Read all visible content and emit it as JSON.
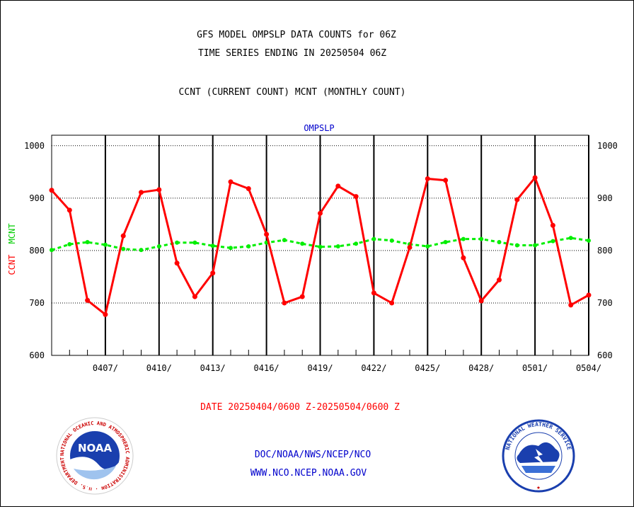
{
  "titles": {
    "line1": "GFS MODEL OMPSLP DATA COUNTS for 06Z",
    "line2": "TIME SERIES ENDING IN 20250504 06Z",
    "line3": "CCNT (CURRENT COUNT) MCNT (MONTHLY COUNT)"
  },
  "footer": {
    "date_range": "DATE 20250404/0600 Z-20250504/0600 Z",
    "org": "DOC/NOAA/NWS/NCEP/NCO",
    "url": "WWW.NCO.NCEP.NOAA.GOV"
  },
  "logos": {
    "noaa_text": "NOAA",
    "noaa_ring": "NATIONAL OCEANIC AND ATMOSPHERIC ADMINISTRATION · U.S. DEPARTMENT OF COMMERCE ·",
    "nws_ring": "NATIONAL WEATHER SERVICE"
  },
  "colors": {
    "ccnt": "#ff0000",
    "mcnt": "#00ee00",
    "grid": "#000000",
    "label_blue": "#0000cc",
    "date_red": "#ff0000"
  },
  "chart_data": {
    "type": "line",
    "title": "OMPSLP",
    "ylabel_parts": [
      "CCNT",
      "MCNT"
    ],
    "ylim": [
      600,
      1020
    ],
    "xlim": [
      0,
      30
    ],
    "yticks": [
      600,
      700,
      800,
      900,
      1000
    ],
    "xtick_labels": [
      "0407/",
      "0410/",
      "0413/",
      "0416/",
      "0419/",
      "0422/",
      "0425/",
      "0428/",
      "0501/",
      "0504/"
    ],
    "xtick_positions": [
      3,
      6,
      9,
      12,
      15,
      18,
      21,
      24,
      27,
      30
    ],
    "grid": true,
    "series": [
      {
        "name": "CCNT",
        "x": [
          0,
          1,
          2,
          3,
          4,
          5,
          6,
          7,
          8,
          9,
          10,
          11,
          12,
          13,
          14,
          15,
          16,
          17,
          18,
          19,
          20,
          21,
          22,
          23,
          24,
          25,
          26,
          27,
          28,
          29,
          30
        ],
        "values": [
          915,
          877,
          705,
          678,
          828,
          911,
          916,
          776,
          712,
          757,
          931,
          918,
          831,
          700,
          712,
          871,
          923,
          903,
          719,
          700,
          806,
          937,
          934,
          786,
          704,
          744,
          897,
          939,
          848,
          696,
          715
        ]
      },
      {
        "name": "MCNT",
        "x": [
          0,
          1,
          2,
          3,
          4,
          5,
          6,
          7,
          8,
          9,
          10,
          11,
          12,
          13,
          14,
          15,
          16,
          17,
          18,
          19,
          20,
          21,
          22,
          23,
          24,
          25,
          26,
          27,
          28,
          29,
          30
        ],
        "values": [
          801,
          812,
          816,
          811,
          803,
          801,
          808,
          815,
          815,
          809,
          805,
          808,
          815,
          820,
          813,
          807,
          808,
          813,
          822,
          819,
          812,
          808,
          816,
          822,
          822,
          816,
          810,
          810,
          818,
          824,
          819
        ]
      }
    ]
  }
}
